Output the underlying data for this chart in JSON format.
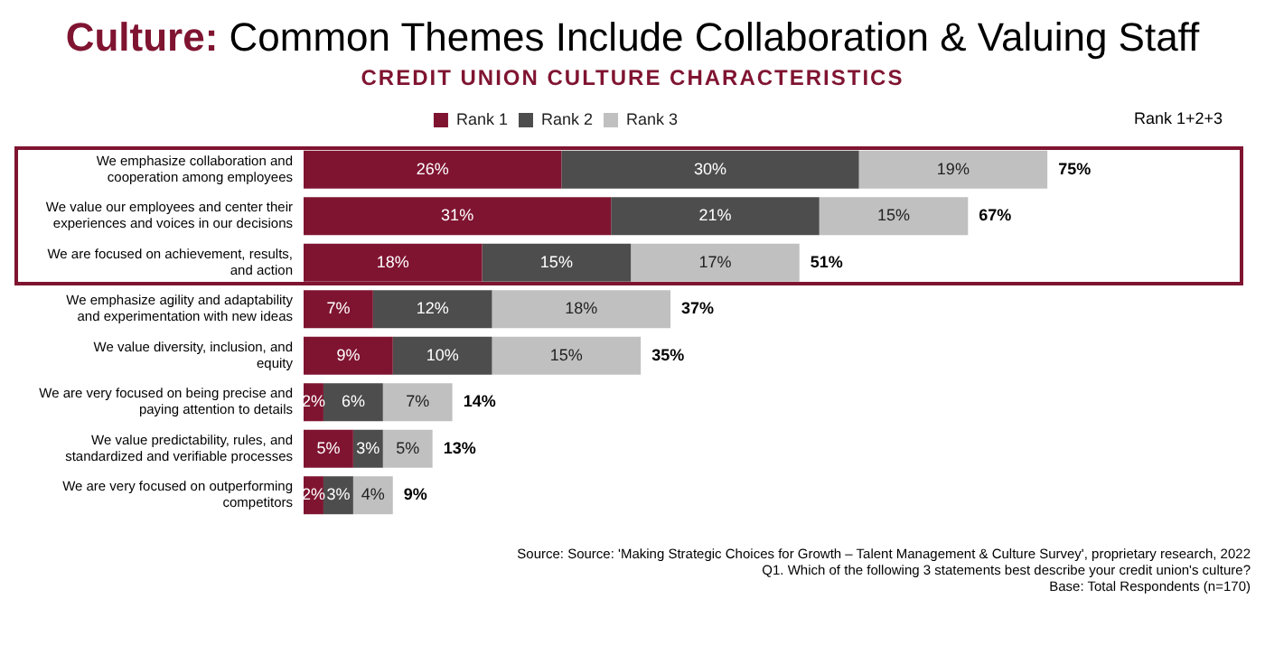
{
  "chart_data": {
    "type": "bar",
    "orientation": "horizontal",
    "stacked": true,
    "title": "Culture: Common Themes Include Collaboration & Valuing Staff",
    "subtitle": "CREDIT UNION CULTURE CHARACTERISTICS",
    "categories": [
      "We emphasize collaboration and cooperation among employees",
      "We value our employees and center their experiences and voices in our decisions",
      "We are focused on achievement, results, and action",
      "We emphasize agility and adaptability and experimentation with new ideas",
      "We value diversity, inclusion, and equity",
      "We are very focused on being precise and paying attention to details",
      "We value predictability, rules, and standardized and verifiable processes",
      "We are very focused on outperforming competitors"
    ],
    "series": [
      {
        "name": "Rank 1",
        "color": "#7f1431",
        "values": [
          26,
          31,
          18,
          7,
          9,
          2,
          5,
          2
        ],
        "value_labels": [
          "26%",
          "31%",
          "18%",
          "7%",
          "9%",
          "2%",
          "5%",
          "2%"
        ]
      },
      {
        "name": "Rank 2",
        "color": "#4d4d4d",
        "values": [
          30,
          21,
          15,
          12,
          10,
          6,
          3,
          3
        ],
        "value_labels": [
          "30%",
          "21%",
          "15%",
          "12%",
          "10%",
          "6%",
          "3%",
          "3%"
        ]
      },
      {
        "name": "Rank 3",
        "color": "#c0c0c0",
        "values": [
          19,
          15,
          17,
          18,
          15,
          7,
          5,
          4
        ],
        "value_labels": [
          "19%",
          "15%",
          "17%",
          "18%",
          "15%",
          "7%",
          "5%",
          "4%"
        ]
      }
    ],
    "totals": [
      "75%",
      "67%",
      "51%",
      "37%",
      "35%",
      "14%",
      "13%",
      "9%"
    ],
    "annotations": [
      "Rank 1+2+3",
      "Source: Source: 'Making Strategic Choices for Growth – Talent Management & Culture Survey', proprietary research, 2022",
      "Q1. Which of the following 3 statements best describe your credit union's culture?",
      "Base: Total Respondents (n=170)"
    ],
    "legend": "top",
    "grid": false,
    "tick_labels": "y"
  }
}
